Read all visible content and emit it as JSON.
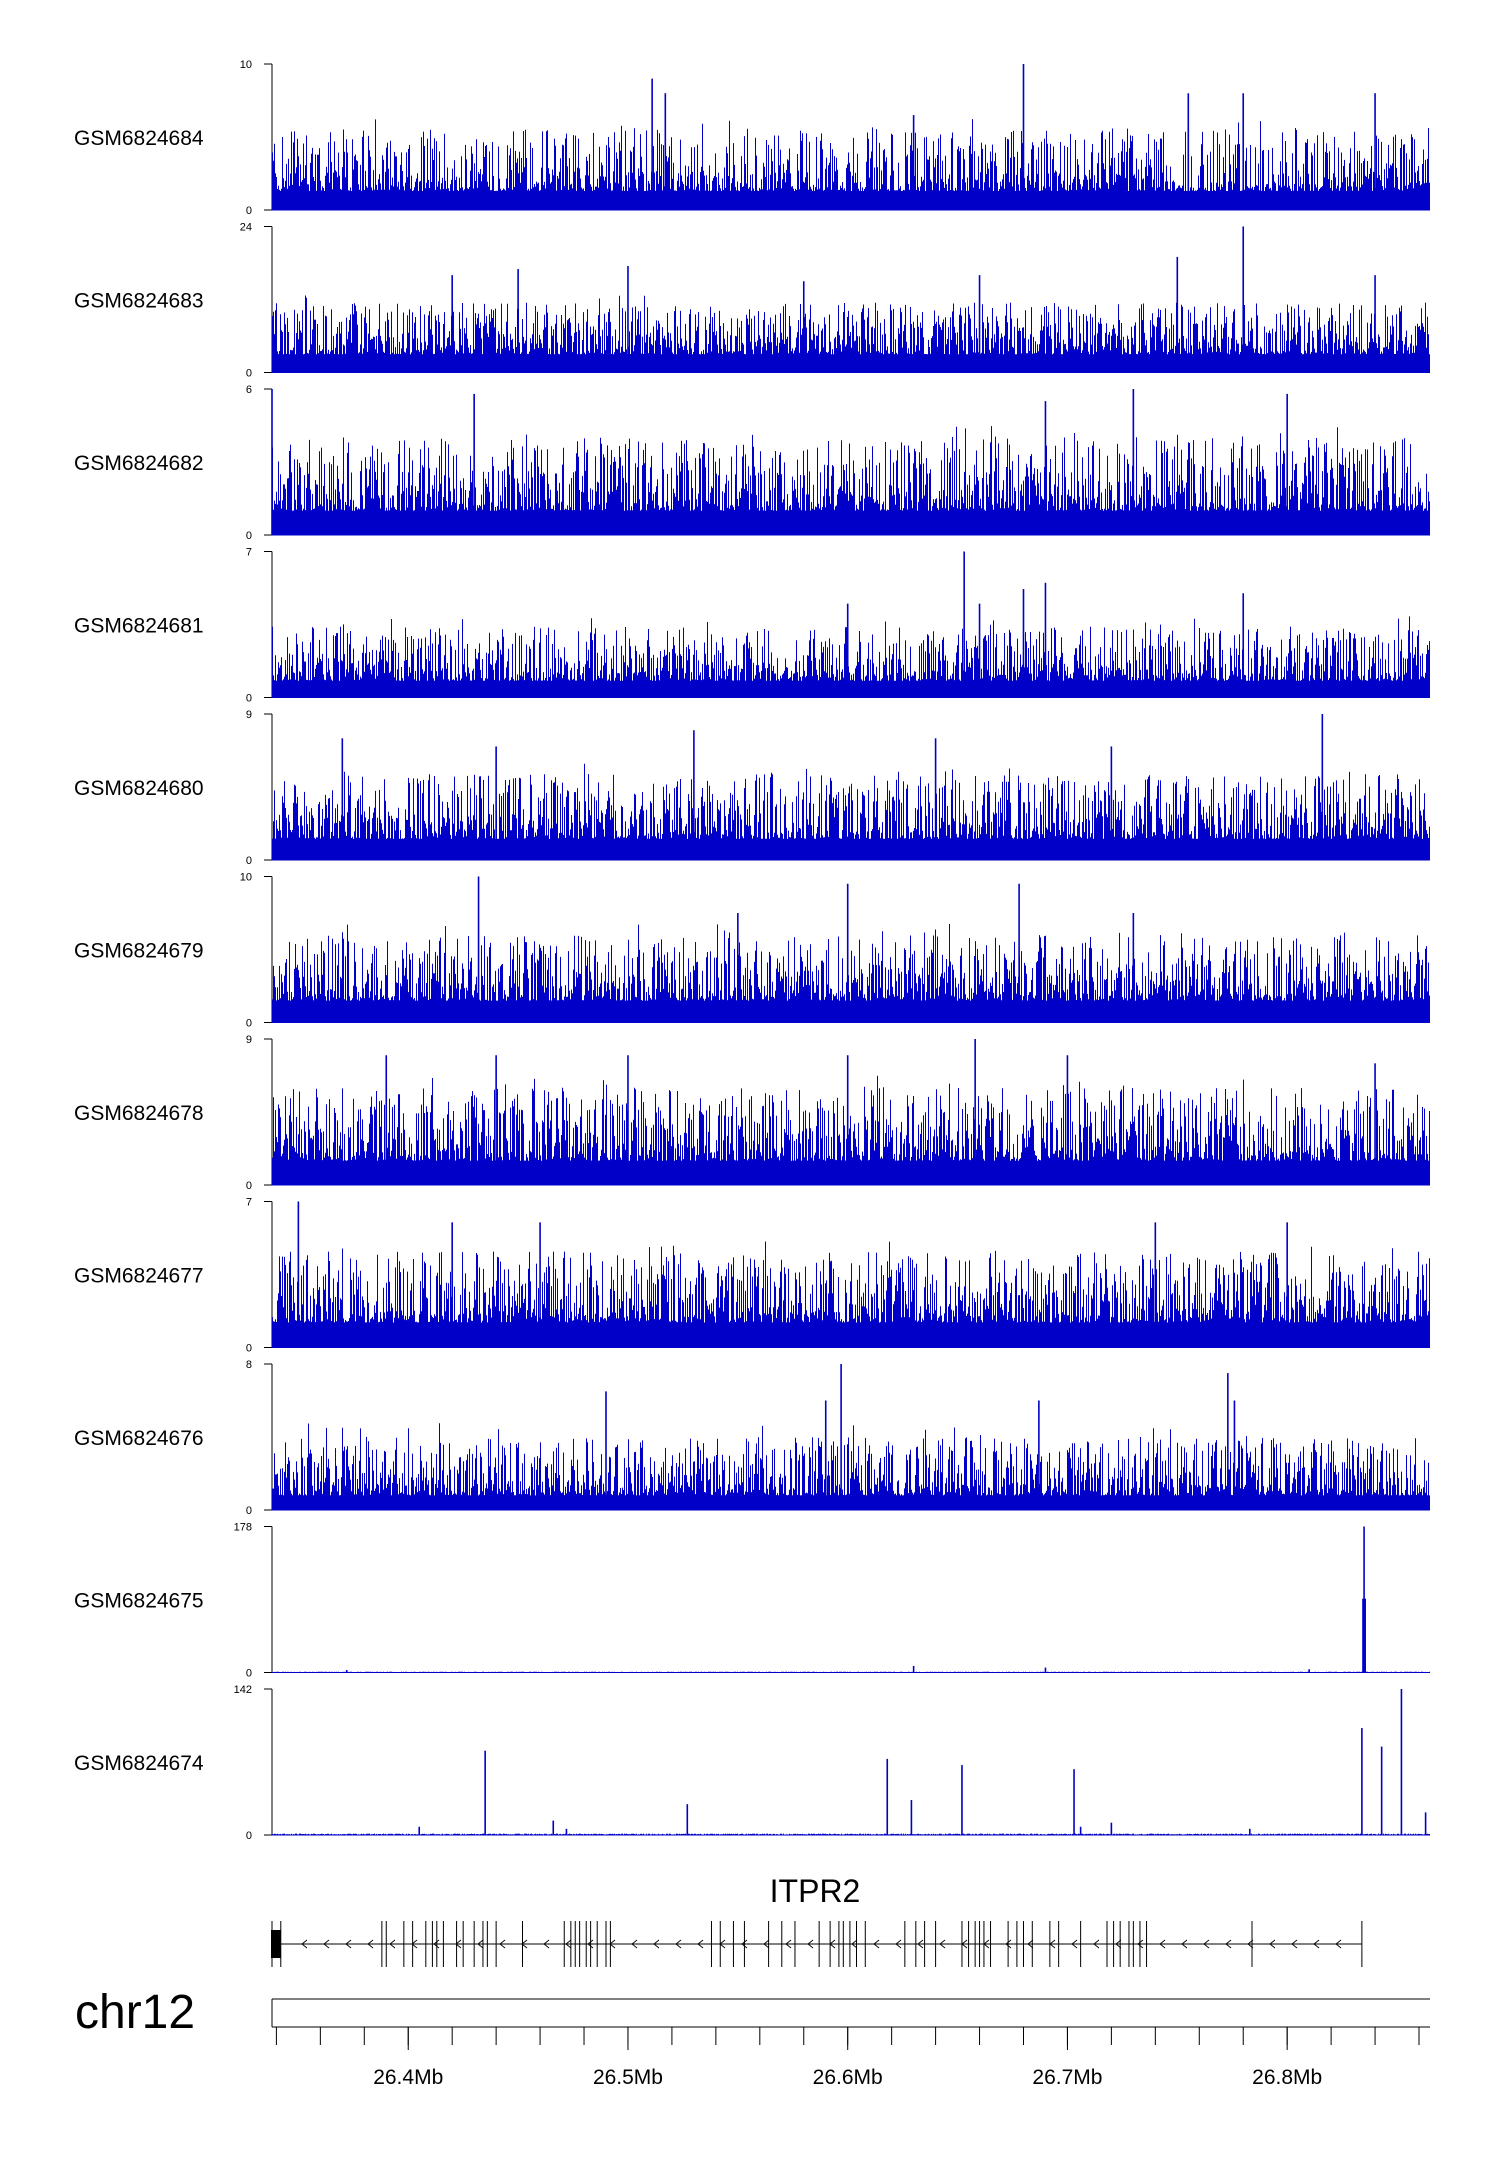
{
  "chart_data": {
    "type": "area",
    "title": "",
    "chromosome": "chr12",
    "gene": "ITPR2",
    "x_axis": {
      "unit": "Mb",
      "range": [
        26.338,
        26.865
      ],
      "ticks": [
        26.4,
        26.5,
        26.6,
        26.7,
        26.8
      ],
      "tick_labels": [
        "26.4Mb",
        "26.5Mb",
        "26.6Mb",
        "26.7Mb",
        "26.8Mb"
      ]
    },
    "series_color": "#0000c8",
    "tracks": [
      {
        "name": "GSM6824684",
        "ymin": 0,
        "ymax": 10,
        "ymin_label": "0",
        "ymax_label": "10",
        "baseline": 1.3,
        "noise_max": 4.2,
        "peaks": [
          [
            26.511,
            9.0
          ],
          [
            26.517,
            8.0
          ],
          [
            26.63,
            6.5
          ],
          [
            26.68,
            10.0
          ],
          [
            26.755,
            8.0
          ],
          [
            26.78,
            8.0
          ],
          [
            26.84,
            8.0
          ]
        ]
      },
      {
        "name": "GSM6824683",
        "ymin": 0,
        "ymax": 24,
        "ymin_label": "0",
        "ymax_label": "24",
        "baseline": 3.0,
        "noise_max": 8.5,
        "peaks": [
          [
            26.42,
            16.0
          ],
          [
            26.45,
            17.0
          ],
          [
            26.5,
            17.5
          ],
          [
            26.58,
            15.0
          ],
          [
            26.66,
            16.0
          ],
          [
            26.75,
            19.0
          ],
          [
            26.78,
            24.0
          ],
          [
            26.84,
            16.0
          ]
        ]
      },
      {
        "name": "GSM6824682",
        "ymin": 0,
        "ymax": 6,
        "ymin_label": "0",
        "ymax_label": "6",
        "baseline": 1.0,
        "noise_max": 3.0,
        "peaks": [
          [
            26.338,
            6.0
          ],
          [
            26.43,
            5.8
          ],
          [
            26.69,
            5.5
          ],
          [
            26.73,
            6.0
          ],
          [
            26.8,
            5.8
          ]
        ]
      },
      {
        "name": "GSM6824681",
        "ymin": 0,
        "ymax": 7,
        "ymin_label": "0",
        "ymax_label": "7",
        "baseline": 0.8,
        "noise_max": 2.6,
        "peaks": [
          [
            26.6,
            4.5
          ],
          [
            26.653,
            7.0
          ],
          [
            26.66,
            4.5
          ],
          [
            26.68,
            5.2
          ],
          [
            26.69,
            5.5
          ],
          [
            26.78,
            5.0
          ]
        ]
      },
      {
        "name": "GSM6824680",
        "ymin": 0,
        "ymax": 9,
        "ymin_label": "0",
        "ymax_label": "9",
        "baseline": 1.3,
        "noise_max": 4.0,
        "peaks": [
          [
            26.37,
            7.5
          ],
          [
            26.44,
            7.0
          ],
          [
            26.53,
            8.0
          ],
          [
            26.64,
            7.5
          ],
          [
            26.72,
            7.0
          ],
          [
            26.816,
            9.0
          ]
        ]
      },
      {
        "name": "GSM6824679",
        "ymin": 0,
        "ymax": 10,
        "ymin_label": "0",
        "ymax_label": "10",
        "baseline": 1.5,
        "noise_max": 4.5,
        "peaks": [
          [
            26.432,
            10.0
          ],
          [
            26.6,
            9.5
          ],
          [
            26.678,
            9.5
          ],
          [
            26.55,
            7.5
          ],
          [
            26.73,
            7.5
          ]
        ]
      },
      {
        "name": "GSM6824678",
        "ymin": 0,
        "ymax": 9,
        "ymin_label": "0",
        "ymax_label": "9",
        "baseline": 1.5,
        "noise_max": 4.5,
        "peaks": [
          [
            26.39,
            8.0
          ],
          [
            26.44,
            8.0
          ],
          [
            26.5,
            8.0
          ],
          [
            26.6,
            8.0
          ],
          [
            26.658,
            9.0
          ],
          [
            26.7,
            8.0
          ],
          [
            26.84,
            7.5
          ]
        ]
      },
      {
        "name": "GSM6824677",
        "ymin": 0,
        "ymax": 7,
        "ymin_label": "0",
        "ymax_label": "7",
        "baseline": 1.2,
        "noise_max": 3.4,
        "peaks": [
          [
            26.35,
            7.0
          ],
          [
            26.42,
            6.0
          ],
          [
            26.46,
            6.0
          ],
          [
            26.74,
            6.0
          ],
          [
            26.8,
            6.0
          ]
        ]
      },
      {
        "name": "GSM6824676",
        "ymin": 0,
        "ymax": 8,
        "ymin_label": "0",
        "ymax_label": "8",
        "baseline": 0.8,
        "noise_max": 3.2,
        "peaks": [
          [
            26.49,
            6.5
          ],
          [
            26.597,
            8.0
          ],
          [
            26.59,
            6.0
          ],
          [
            26.687,
            6.0
          ],
          [
            26.773,
            7.5
          ],
          [
            26.776,
            6.0
          ]
        ]
      },
      {
        "name": "GSM6824675",
        "ymin": 0,
        "ymax": 178,
        "ymin_label": "0",
        "ymax_label": "178",
        "baseline": 0.4,
        "noise_max": 1.2,
        "peaks": [
          [
            26.372,
            3.0
          ],
          [
            26.63,
            8.0
          ],
          [
            26.69,
            6.0
          ],
          [
            26.81,
            4.0
          ],
          [
            26.835,
            178.0
          ],
          [
            26.8345,
            90.0
          ],
          [
            26.8355,
            90.0
          ]
        ]
      },
      {
        "name": "GSM6824674",
        "ymin": 0,
        "ymax": 142,
        "ymin_label": "0",
        "ymax_label": "142",
        "baseline": 0.4,
        "noise_max": 2.0,
        "peaks": [
          [
            26.405,
            8.0
          ],
          [
            26.435,
            82.0
          ],
          [
            26.466,
            14.0
          ],
          [
            26.472,
            6.0
          ],
          [
            26.527,
            30.0
          ],
          [
            26.618,
            74.0
          ],
          [
            26.629,
            34.0
          ],
          [
            26.652,
            68.0
          ],
          [
            26.703,
            64.0
          ],
          [
            26.706,
            8.0
          ],
          [
            26.72,
            12.0
          ],
          [
            26.783,
            6.0
          ],
          [
            26.834,
            104.0
          ],
          [
            26.843,
            86.0
          ],
          [
            26.852,
            142.0
          ],
          [
            26.863,
            22.0
          ]
        ]
      }
    ],
    "gene_model": {
      "start": 26.338,
      "end": 26.834,
      "strand": "-",
      "exons": [
        26.338,
        26.342,
        26.388,
        26.39,
        26.398,
        26.402,
        26.408,
        26.411,
        26.413,
        26.416,
        26.422,
        26.425,
        26.43,
        26.434,
        26.436,
        26.44,
        26.452,
        26.471,
        26.474,
        26.476,
        26.478,
        26.481,
        26.483,
        26.486,
        26.49,
        26.492,
        26.538,
        26.542,
        26.548,
        26.553,
        26.564,
        26.57,
        26.576,
        26.587,
        26.592,
        26.596,
        26.598,
        26.601,
        26.604,
        26.608,
        26.626,
        26.631,
        26.635,
        26.64,
        26.652,
        26.655,
        26.658,
        26.66,
        26.662,
        26.665,
        26.673,
        26.677,
        26.68,
        26.684,
        26.692,
        26.696,
        26.706,
        26.718,
        26.721,
        26.724,
        26.728,
        26.73,
        26.733,
        26.736,
        26.784,
        26.834
      ]
    }
  }
}
